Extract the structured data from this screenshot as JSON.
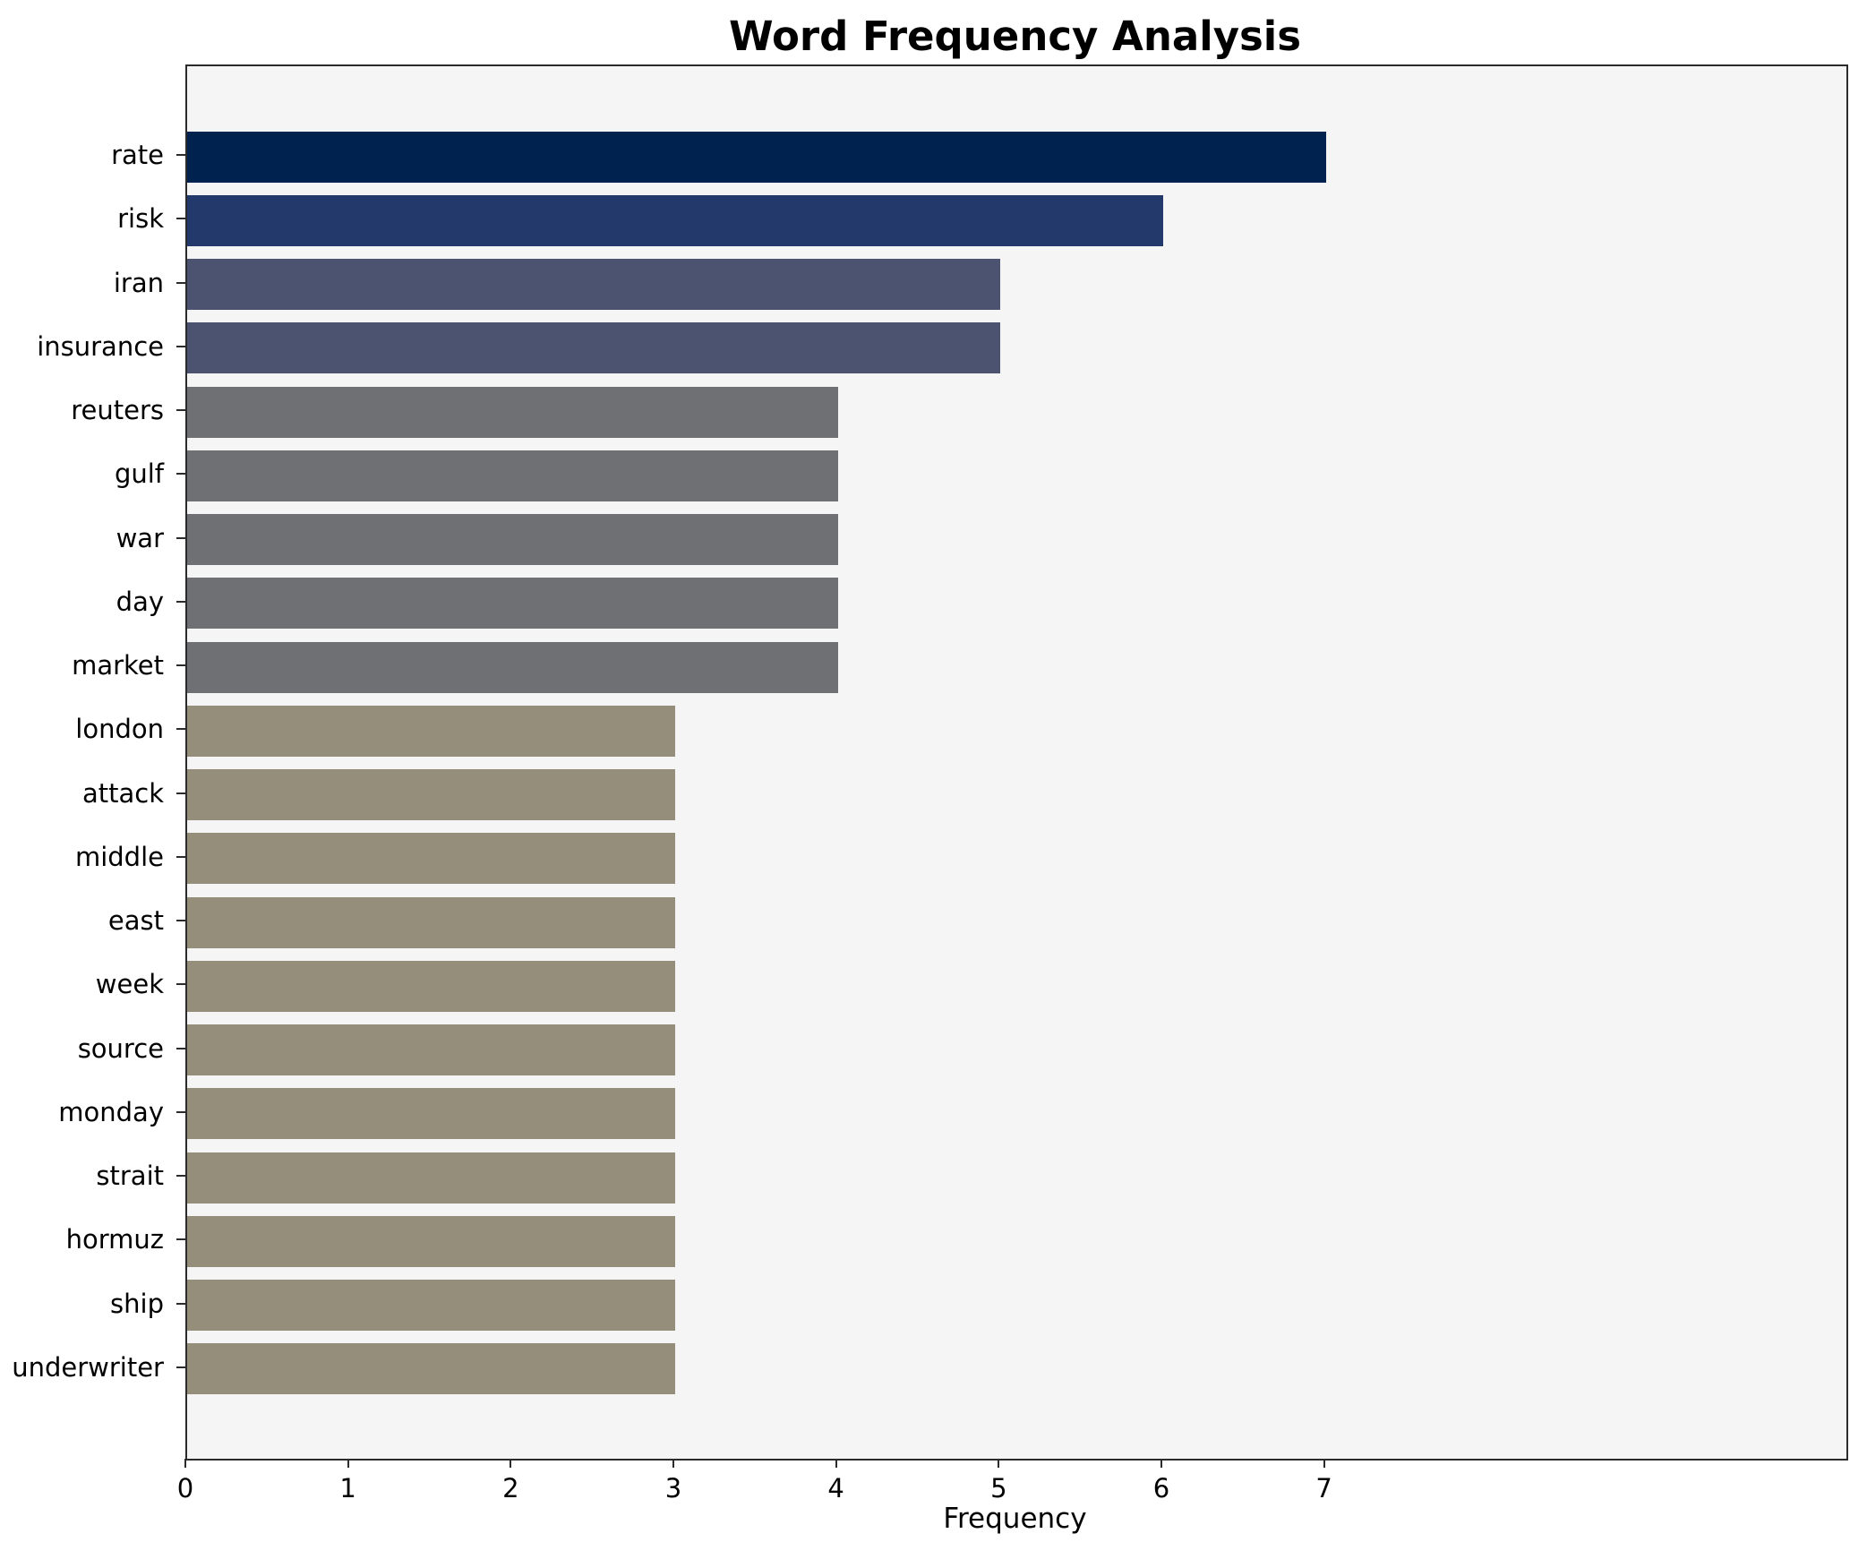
{
  "chart": {
    "title": "Word Frequency Analysis",
    "xlabel": "Frequency"
  },
  "chart_data": {
    "type": "bar",
    "orientation": "horizontal",
    "title": "Word Frequency Analysis",
    "xlabel": "Frequency",
    "ylabel": "",
    "categories": [
      "rate",
      "risk",
      "iran",
      "insurance",
      "reuters",
      "gulf",
      "war",
      "day",
      "market",
      "london",
      "attack",
      "middle",
      "east",
      "week",
      "source",
      "monday",
      "strait",
      "hormuz",
      "ship",
      "underwriter"
    ],
    "values": [
      7,
      6,
      5,
      5,
      4,
      4,
      4,
      4,
      4,
      3,
      3,
      3,
      3,
      3,
      3,
      3,
      3,
      3,
      3,
      3
    ],
    "bar_colors": [
      "#00224e",
      "#24396b",
      "#4b5370",
      "#4b5370",
      "#6f7073",
      "#6f7073",
      "#6f7073",
      "#6f7073",
      "#6f7073",
      "#948e7b",
      "#948e7b",
      "#948e7b",
      "#948e7b",
      "#948e7b",
      "#948e7b",
      "#948e7b",
      "#948e7b",
      "#948e7b",
      "#948e7b",
      "#948e7b"
    ],
    "x_ticks": [
      0,
      1,
      2,
      3,
      4,
      5,
      6,
      7
    ],
    "xlim": [
      0,
      10.2
    ],
    "grid": false,
    "legend": false,
    "plot_background": "#f5f5f5"
  }
}
